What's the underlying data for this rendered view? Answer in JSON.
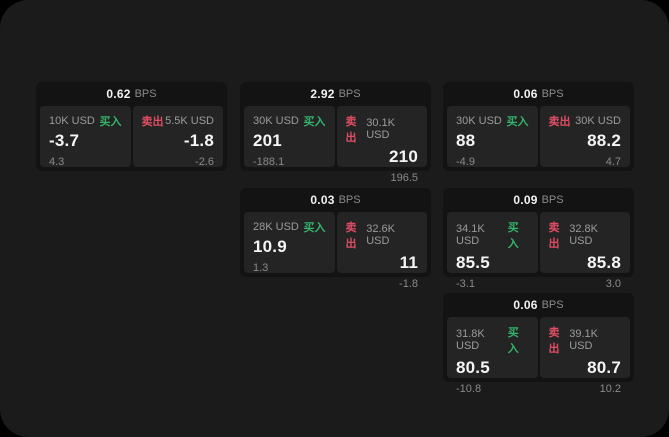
{
  "labels": {
    "buy": "买入",
    "sell": "卖出",
    "bps": "BPS"
  },
  "colors": {
    "outer_bg": "#000000",
    "window_bg": "#1b1b1b",
    "card_bg": "#131313",
    "panel_bg": "#242424",
    "text_primary": "#f5f5f5",
    "text_muted": "#8a8a8a",
    "buy_green": "#32b36a",
    "sell_red": "#dd4e63"
  },
  "cards": [
    {
      "bps": "0.62",
      "buy": {
        "amount": "10K USD",
        "price": "-3.7",
        "delta": "4.3"
      },
      "sell": {
        "amount": "5.5K USD",
        "price": "-1.8",
        "delta": "-2.6"
      }
    },
    {
      "bps": "2.92",
      "buy": {
        "amount": "30K USD",
        "price": "201",
        "delta": "-188.1"
      },
      "sell": {
        "amount": "30.1K USD",
        "price": "210",
        "delta": "196.5"
      }
    },
    {
      "bps": "0.06",
      "buy": {
        "amount": "30K USD",
        "price": "88",
        "delta": "-4.9"
      },
      "sell": {
        "amount": "30K USD",
        "price": "88.2",
        "delta": "4.7"
      }
    },
    {
      "bps": "0.03",
      "buy": {
        "amount": "28K USD",
        "price": "10.9",
        "delta": "1.3"
      },
      "sell": {
        "amount": "32.6K USD",
        "price": "11",
        "delta": "-1.8"
      }
    },
    {
      "bps": "0.09",
      "buy": {
        "amount": "34.1K USD",
        "price": "85.5",
        "delta": "-3.1"
      },
      "sell": {
        "amount": "32.8K USD",
        "price": "85.8",
        "delta": "3.0"
      }
    },
    {
      "bps": "0.06",
      "buy": {
        "amount": "31.8K USD",
        "price": "80.5",
        "delta": "-10.8"
      },
      "sell": {
        "amount": "39.1K USD",
        "price": "80.7",
        "delta": "10.2"
      }
    }
  ]
}
